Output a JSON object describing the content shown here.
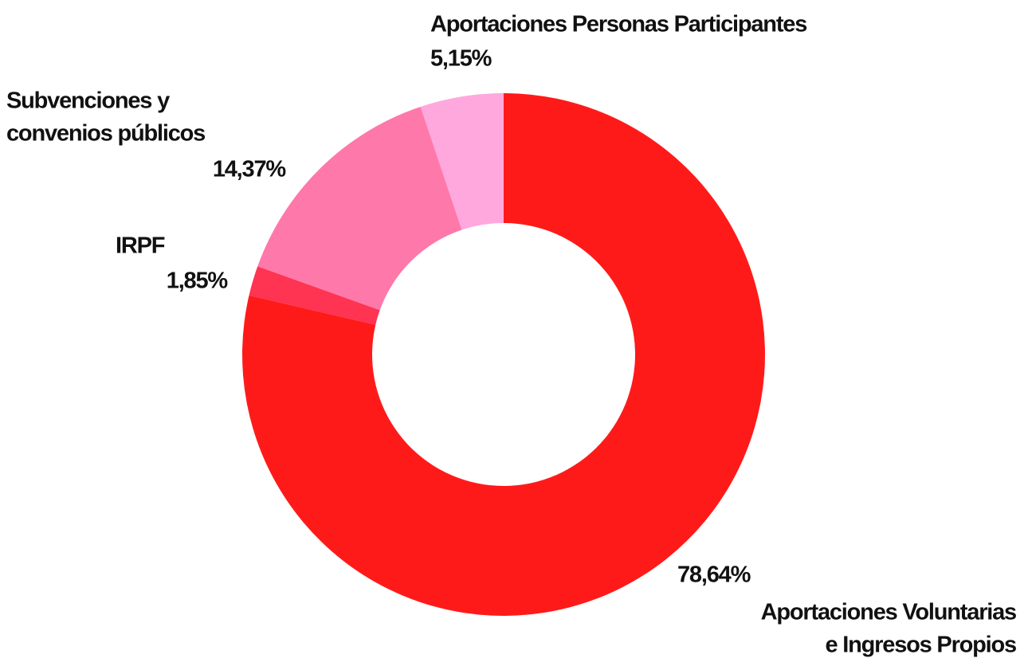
{
  "chart_data": {
    "type": "pie",
    "donut": true,
    "categories": [
      [
        "Aportaciones Voluntarias",
        "e Ingresos Propios"
      ],
      [
        "IRPF"
      ],
      [
        "Subvenciones y",
        "convenios públicos"
      ],
      [
        "Aportaciones Personas Participantes"
      ]
    ],
    "values": [
      78.64,
      1.85,
      14.37,
      5.15
    ],
    "value_labels": [
      "78,64%",
      "1,85%",
      "14,37%",
      "5,15%"
    ],
    "colors": [
      "#ff1a1a",
      "#ff3352",
      "#ff78aa",
      "#ffa8de"
    ]
  }
}
